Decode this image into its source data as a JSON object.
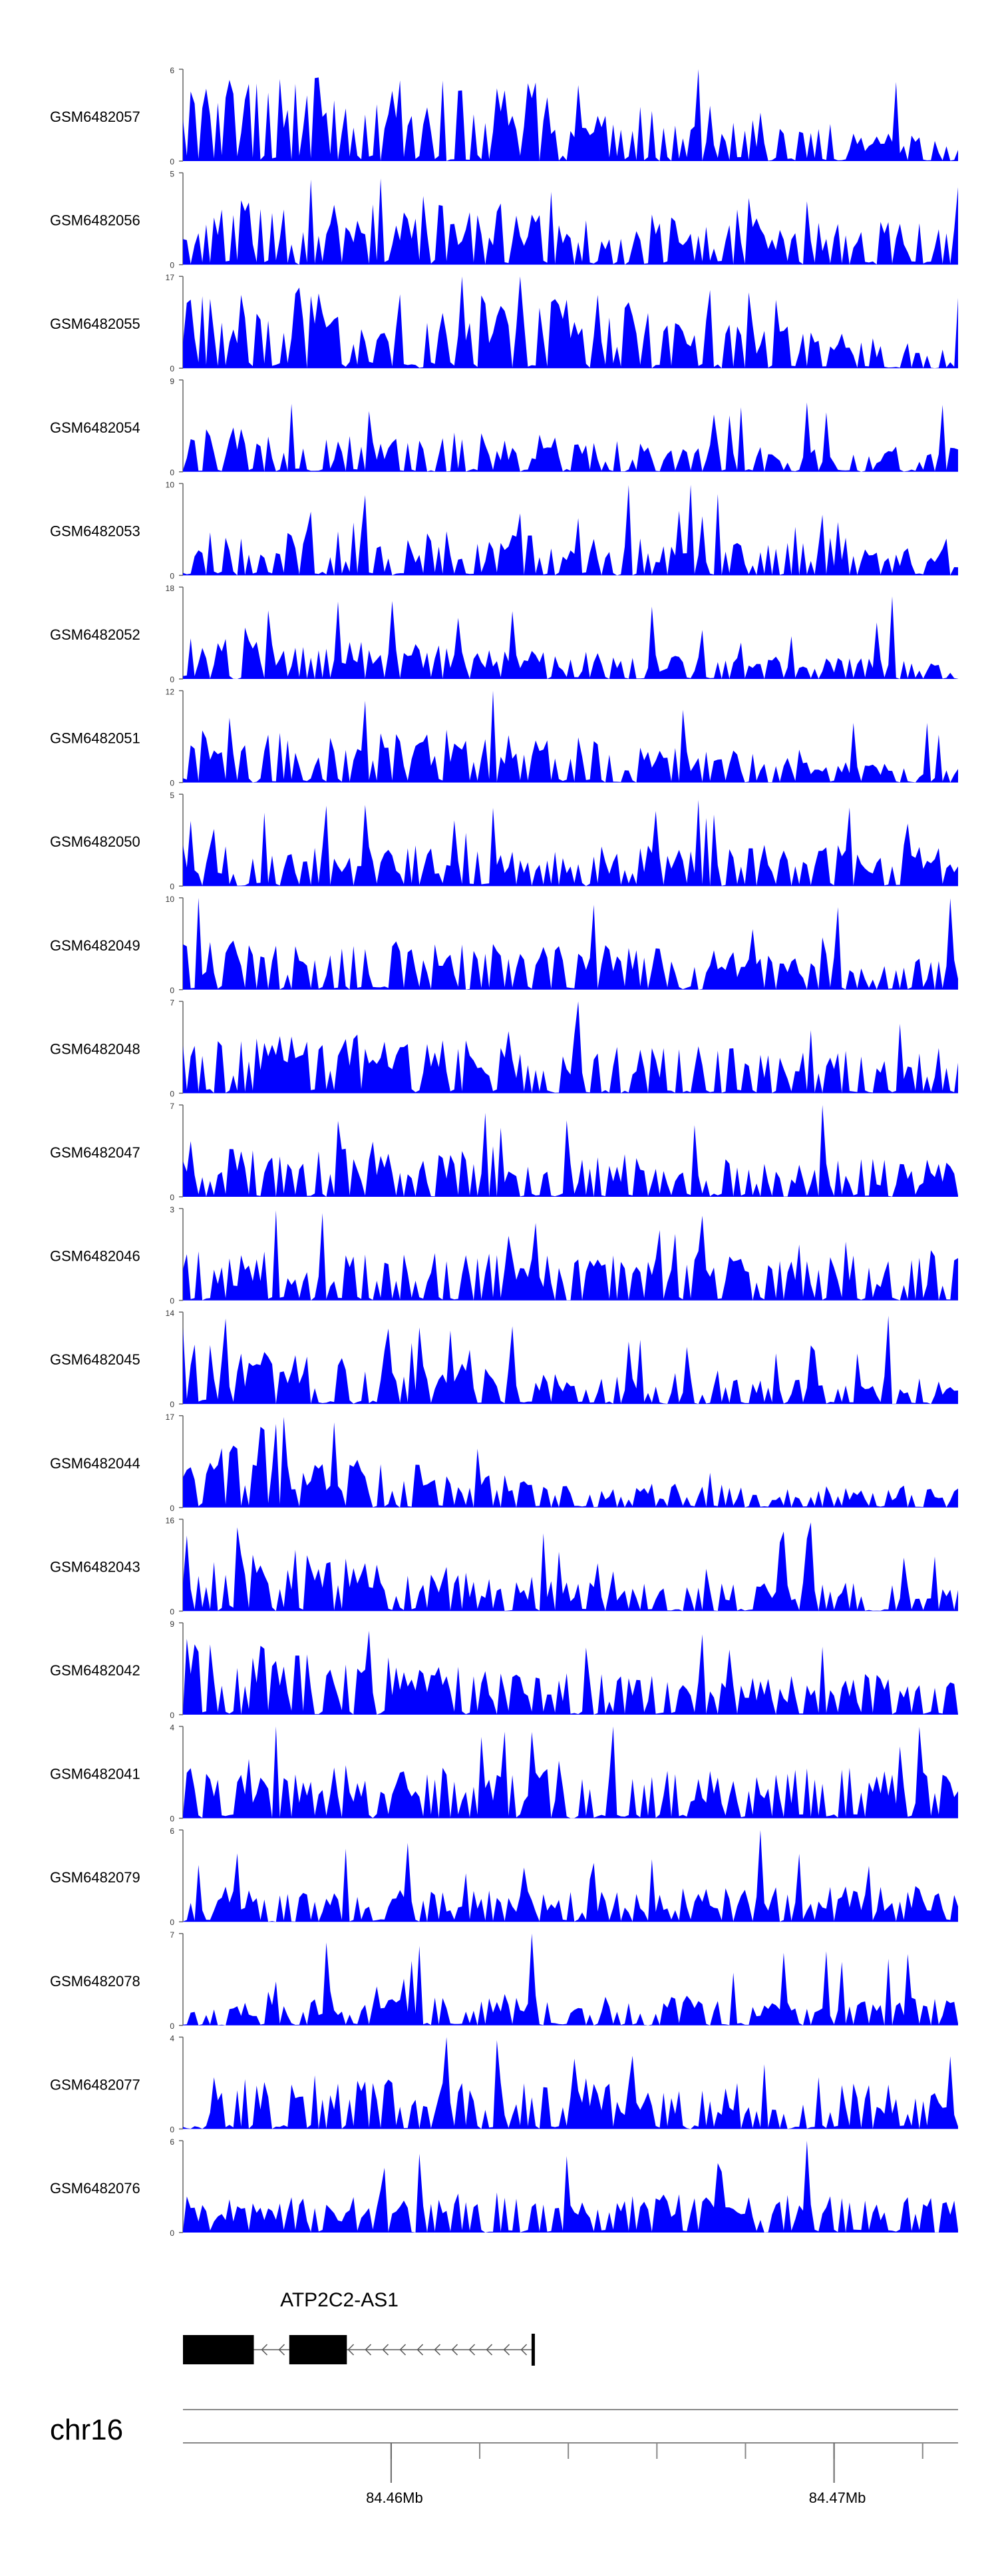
{
  "chart_data": {
    "type": "area",
    "chromosome": "chr16",
    "x_range_mb": [
      84.4553,
      84.4728
    ],
    "x_ticks": [
      {
        "value": 84.46,
        "label": "84.46Mb"
      },
      {
        "value": 84.47,
        "label": "84.47Mb"
      }
    ],
    "minor_ticks_mb": [
      84.46,
      84.462,
      84.464,
      84.466,
      84.468,
      84.47,
      84.472,
      84.474,
      84.476,
      84.478,
      84.48
    ],
    "fill_color": "#0000ff",
    "gene": {
      "name": "ATP2C2-AS1",
      "strand": "-",
      "exons_mb": [
        [
          84.4553,
          84.4569
        ],
        [
          84.4577,
          84.459
        ]
      ],
      "end_mb": 84.4632
    },
    "tracks": [
      {
        "name": "GSM6482057",
        "ymax": 6,
        "seed": 57,
        "profile": [
          1.0,
          0.85,
          0.2
        ]
      },
      {
        "name": "GSM6482056",
        "ymax": 5,
        "seed": 56,
        "profile": [
          0.75,
          0.6,
          0.45
        ]
      },
      {
        "name": "GSM6482055",
        "ymax": 17,
        "seed": 55,
        "profile": [
          0.95,
          0.85,
          0.2
        ]
      },
      {
        "name": "GSM6482054",
        "ymax": 9,
        "seed": 54,
        "profile": [
          0.5,
          0.4,
          0.3
        ]
      },
      {
        "name": "GSM6482053",
        "ymax": 10,
        "seed": 53,
        "profile": [
          0.55,
          0.45,
          0.3
        ]
      },
      {
        "name": "GSM6482052",
        "ymax": 18,
        "seed": 52,
        "profile": [
          0.5,
          0.3,
          0.2
        ]
      },
      {
        "name": "GSM6482051",
        "ymax": 12,
        "seed": 51,
        "profile": [
          0.6,
          0.5,
          0.15
        ]
      },
      {
        "name": "GSM6482050",
        "ymax": 5,
        "seed": 50,
        "profile": [
          0.45,
          0.45,
          0.45
        ]
      },
      {
        "name": "GSM6482049",
        "ymax": 10,
        "seed": 49,
        "profile": [
          0.55,
          0.5,
          0.35
        ]
      },
      {
        "name": "GSM6482048",
        "ymax": 7,
        "seed": 48,
        "profile": [
          0.65,
          0.55,
          0.5
        ]
      },
      {
        "name": "GSM6482047",
        "ymax": 7,
        "seed": 47,
        "profile": [
          0.55,
          0.5,
          0.4
        ]
      },
      {
        "name": "GSM6482046",
        "ymax": 3,
        "seed": 46,
        "profile": [
          0.55,
          0.5,
          0.5
        ]
      },
      {
        "name": "GSM6482045",
        "ymax": 14,
        "seed": 45,
        "profile": [
          0.7,
          0.35,
          0.3
        ]
      },
      {
        "name": "GSM6482044",
        "ymax": 17,
        "seed": 44,
        "profile": [
          0.75,
          0.3,
          0.25
        ]
      },
      {
        "name": "GSM6482043",
        "ymax": 16,
        "seed": 43,
        "profile": [
          0.85,
          0.35,
          0.3
        ]
      },
      {
        "name": "GSM6482042",
        "ymax": 9,
        "seed": 42,
        "profile": [
          0.85,
          0.45,
          0.45
        ]
      },
      {
        "name": "GSM6482041",
        "ymax": 4,
        "seed": 41,
        "profile": [
          0.6,
          0.55,
          0.55
        ]
      },
      {
        "name": "GSM6482079",
        "ymax": 6,
        "seed": 79,
        "profile": [
          0.35,
          0.35,
          0.4
        ]
      },
      {
        "name": "GSM6482078",
        "ymax": 7,
        "seed": 78,
        "profile": [
          0.35,
          0.35,
          0.3
        ]
      },
      {
        "name": "GSM6482077",
        "ymax": 4,
        "seed": 77,
        "profile": [
          0.6,
          0.5,
          0.5
        ]
      },
      {
        "name": "GSM6482076",
        "ymax": 6,
        "seed": 76,
        "profile": [
          0.4,
          0.45,
          0.4
        ]
      }
    ]
  }
}
